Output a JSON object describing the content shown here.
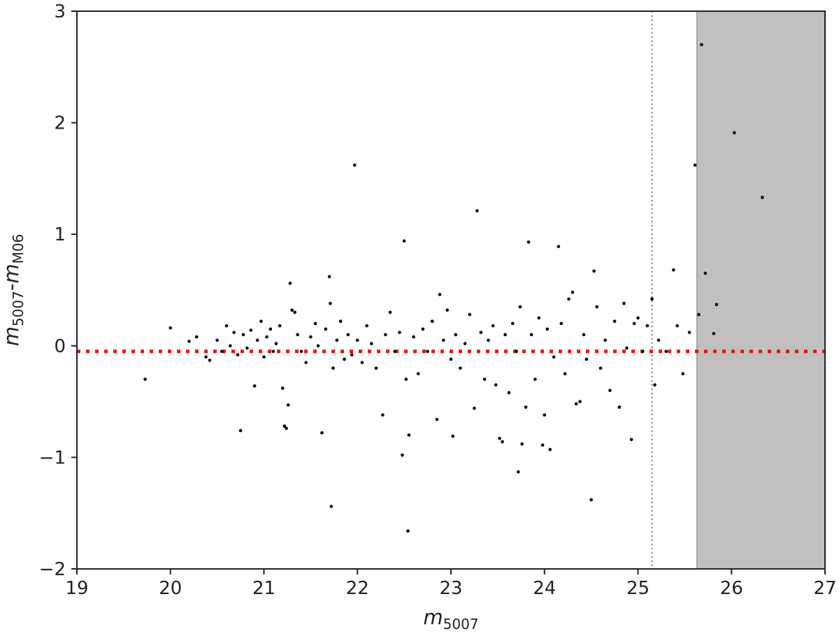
{
  "chart_data": {
    "type": "scatter",
    "title": "",
    "xlabel": {
      "base": "m",
      "sub": "5007"
    },
    "ylabel": {
      "base1": "m",
      "sub1": "5007",
      "sep": "-",
      "base2": "m",
      "sub2": "M06"
    },
    "xlim": [
      19,
      27
    ],
    "ylim": [
      -2,
      3
    ],
    "xticks": [
      "19",
      "20",
      "21",
      "22",
      "23",
      "24",
      "25",
      "26",
      "27"
    ],
    "yticks": [
      "3",
      "2",
      "1",
      "0",
      "−1",
      "−2"
    ],
    "grid": false,
    "reference_line": {
      "y": -0.05,
      "color": "#ee1111",
      "style": "dotted"
    },
    "vertical_line": {
      "x": 25.15,
      "color": "#777777",
      "style": "dotted"
    },
    "shaded_region": {
      "x_from": 25.63,
      "x_to": 27,
      "color": "#c0c0c0"
    },
    "point_color": "#000000",
    "points": [
      [
        19.73,
        -0.3
      ],
      [
        20.0,
        0.16
      ],
      [
        20.2,
        0.04
      ],
      [
        20.28,
        0.08
      ],
      [
        20.38,
        -0.1
      ],
      [
        20.42,
        -0.13
      ],
      [
        20.5,
        0.05
      ],
      [
        20.55,
        -0.05
      ],
      [
        20.6,
        0.18
      ],
      [
        20.64,
        0.0
      ],
      [
        20.68,
        0.12
      ],
      [
        20.72,
        -0.08
      ],
      [
        20.75,
        -0.76
      ],
      [
        20.78,
        0.1
      ],
      [
        20.82,
        -0.02
      ],
      [
        20.86,
        0.14
      ],
      [
        20.9,
        -0.36
      ],
      [
        20.93,
        0.05
      ],
      [
        20.97,
        0.22
      ],
      [
        21.0,
        -0.1
      ],
      [
        21.03,
        0.08
      ],
      [
        21.07,
        0.15
      ],
      [
        21.1,
        -0.05
      ],
      [
        21.13,
        0.02
      ],
      [
        21.17,
        0.18
      ],
      [
        21.2,
        -0.38
      ],
      [
        21.22,
        -0.72
      ],
      [
        21.24,
        -0.74
      ],
      [
        21.26,
        -0.53
      ],
      [
        21.28,
        0.56
      ],
      [
        21.3,
        0.32
      ],
      [
        21.33,
        0.3
      ],
      [
        21.36,
        0.1
      ],
      [
        21.4,
        -0.05
      ],
      [
        21.45,
        -0.15
      ],
      [
        21.5,
        0.08
      ],
      [
        21.55,
        0.2
      ],
      [
        21.58,
        0.0
      ],
      [
        21.62,
        -0.78
      ],
      [
        21.66,
        0.15
      ],
      [
        21.7,
        0.62
      ],
      [
        21.71,
        0.38
      ],
      [
        21.72,
        -1.44
      ],
      [
        21.74,
        -0.2
      ],
      [
        21.78,
        0.05
      ],
      [
        21.82,
        0.22
      ],
      [
        21.86,
        -0.12
      ],
      [
        21.9,
        0.1
      ],
      [
        21.94,
        -0.08
      ],
      [
        21.97,
        1.62
      ],
      [
        22.0,
        0.05
      ],
      [
        22.05,
        -0.15
      ],
      [
        22.1,
        0.18
      ],
      [
        22.15,
        0.02
      ],
      [
        22.2,
        -0.2
      ],
      [
        22.27,
        -0.62
      ],
      [
        22.3,
        0.1
      ],
      [
        22.35,
        0.3
      ],
      [
        22.4,
        -0.05
      ],
      [
        22.45,
        0.12
      ],
      [
        22.48,
        -0.98
      ],
      [
        22.5,
        0.94
      ],
      [
        22.52,
        -0.3
      ],
      [
        22.54,
        -1.66
      ],
      [
        22.55,
        -0.8
      ],
      [
        22.6,
        0.08
      ],
      [
        22.65,
        -0.25
      ],
      [
        22.7,
        0.15
      ],
      [
        22.75,
        -0.05
      ],
      [
        22.8,
        0.22
      ],
      [
        22.85,
        -0.66
      ],
      [
        22.88,
        0.46
      ],
      [
        22.92,
        0.05
      ],
      [
        22.96,
        0.32
      ],
      [
        23.0,
        -0.12
      ],
      [
        23.02,
        -0.81
      ],
      [
        23.05,
        0.1
      ],
      [
        23.1,
        -0.2
      ],
      [
        23.15,
        0.02
      ],
      [
        23.2,
        0.28
      ],
      [
        23.25,
        -0.56
      ],
      [
        23.28,
        1.21
      ],
      [
        23.32,
        0.12
      ],
      [
        23.36,
        -0.3
      ],
      [
        23.4,
        0.05
      ],
      [
        23.45,
        0.18
      ],
      [
        23.48,
        -0.35
      ],
      [
        23.52,
        -0.83
      ],
      [
        23.55,
        -0.86
      ],
      [
        23.58,
        0.1
      ],
      [
        23.62,
        -0.42
      ],
      [
        23.66,
        0.2
      ],
      [
        23.7,
        -0.05
      ],
      [
        23.72,
        -1.13
      ],
      [
        23.74,
        0.35
      ],
      [
        23.76,
        -0.88
      ],
      [
        23.8,
        -0.55
      ],
      [
        23.83,
        0.93
      ],
      [
        23.86,
        0.1
      ],
      [
        23.9,
        -0.3
      ],
      [
        23.94,
        0.25
      ],
      [
        23.98,
        -0.89
      ],
      [
        24.0,
        -0.62
      ],
      [
        24.03,
        0.15
      ],
      [
        24.06,
        -0.93
      ],
      [
        24.1,
        -0.1
      ],
      [
        24.15,
        0.89
      ],
      [
        24.18,
        0.2
      ],
      [
        24.22,
        -0.25
      ],
      [
        24.26,
        0.42
      ],
      [
        24.3,
        0.48
      ],
      [
        24.34,
        -0.52
      ],
      [
        24.38,
        -0.5
      ],
      [
        24.42,
        0.1
      ],
      [
        24.45,
        -0.12
      ],
      [
        24.5,
        -1.38
      ],
      [
        24.53,
        0.67
      ],
      [
        24.56,
        0.35
      ],
      [
        24.6,
        -0.2
      ],
      [
        24.65,
        0.05
      ],
      [
        24.7,
        -0.4
      ],
      [
        24.75,
        0.22
      ],
      [
        24.8,
        -0.55
      ],
      [
        24.85,
        0.38
      ],
      [
        24.88,
        -0.02
      ],
      [
        24.93,
        -0.84
      ],
      [
        24.96,
        0.2
      ],
      [
        25.0,
        0.25
      ],
      [
        25.05,
        -0.05
      ],
      [
        25.1,
        0.18
      ],
      [
        25.15,
        0.42
      ],
      [
        25.18,
        -0.35
      ],
      [
        25.22,
        0.05
      ],
      [
        25.3,
        -0.05
      ],
      [
        25.38,
        0.68
      ],
      [
        25.42,
        0.18
      ],
      [
        25.48,
        -0.25
      ],
      [
        25.55,
        0.12
      ],
      [
        25.61,
        1.62
      ],
      [
        25.65,
        0.28
      ],
      [
        25.68,
        2.7
      ],
      [
        25.72,
        0.65
      ],
      [
        25.81,
        0.11
      ],
      [
        25.84,
        0.37
      ],
      [
        26.03,
        1.91
      ],
      [
        26.33,
        1.33
      ]
    ]
  }
}
